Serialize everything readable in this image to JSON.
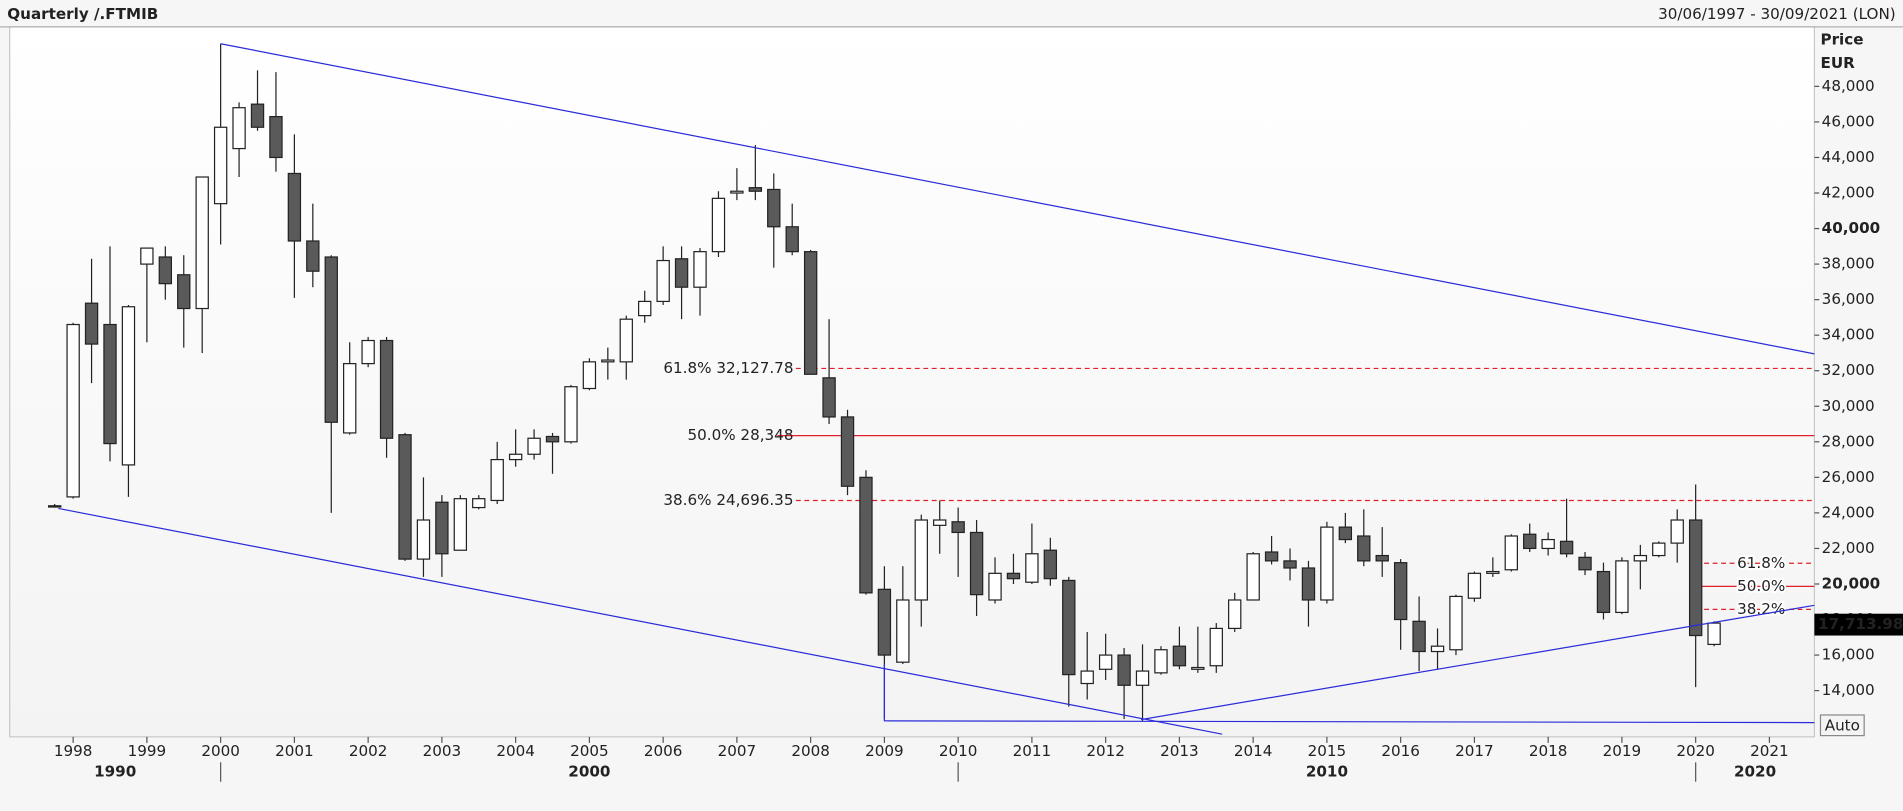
{
  "chart_data": {
    "type": "candlestick",
    "title": "Quarterly /.FTMIB",
    "subtitle": "30/06/1997 - 30/09/2021 (LON)",
    "y_label": "Price",
    "y_unit": "EUR",
    "up_color": "#ffffff",
    "down_color": "#5a5a5a",
    "x": [
      1997.75,
      1998,
      1998.25,
      1998.5,
      1998.75,
      1999,
      1999.25,
      1999.5,
      1999.75,
      2000,
      2000.25,
      2000.5,
      2000.75,
      2001,
      2001.25,
      2001.5,
      2001.75,
      2002,
      2002.25,
      2002.5,
      2002.75,
      2003,
      2003.25,
      2003.5,
      2003.75,
      2004,
      2004.25,
      2004.5,
      2004.75,
      2005,
      2005.25,
      2005.5,
      2005.75,
      2006,
      2006.25,
      2006.5,
      2006.75,
      2007,
      2007.25,
      2007.5,
      2007.75,
      2008,
      2008.25,
      2008.5,
      2008.75,
      2009,
      2009.25,
      2009.5,
      2009.75,
      2010,
      2010.25,
      2010.5,
      2010.75,
      2011,
      2011.25,
      2011.5,
      2011.75,
      2012,
      2012.25,
      2012.5,
      2012.75,
      2013,
      2013.25,
      2013.5,
      2013.75,
      2014,
      2014.25,
      2014.5,
      2014.75,
      2015,
      2015.25,
      2015.5,
      2015.75,
      2016,
      2016.25,
      2016.5,
      2016.75,
      2017,
      2017.25,
      2017.5,
      2017.75,
      2018,
      2018.25,
      2018.5,
      2018.75,
      2019,
      2019.25,
      2019.5,
      2019.75,
      2020,
      2020.25
    ],
    "open": [
      24400,
      24900,
      35800,
      34600,
      26700,
      38000,
      38400,
      37400,
      35500,
      41400,
      44500,
      47000,
      46300,
      43100,
      39300,
      38400,
      28500,
      32400,
      33700,
      28400,
      21400,
      24600,
      21900,
      24300,
      24700,
      27000,
      27300,
      28300,
      28000,
      31000,
      32500,
      32500,
      35100,
      35900,
      38300,
      36700,
      38700,
      42000,
      42300,
      42200,
      40100,
      38700,
      31600,
      29400,
      26000,
      19700,
      15600,
      19100,
      23300,
      23500,
      22900,
      19100,
      20600,
      20100,
      21900,
      20200,
      14400,
      15200,
      16000,
      14300,
      15000,
      16500,
      15200,
      15400,
      17500,
      19100,
      21800,
      21300,
      20900,
      19100,
      23200,
      22700,
      21600,
      21200,
      17900,
      16200,
      16300,
      19200,
      20600,
      20800,
      22800,
      22000,
      22400,
      21500,
      20700,
      18400,
      21300,
      21600,
      22300,
      23600,
      16600
    ],
    "high": [
      24500,
      34700,
      38300,
      39000,
      35700,
      38900,
      39000,
      38500,
      42900,
      50400,
      47100,
      48900,
      48800,
      45300,
      41400,
      38500,
      33600,
      33900,
      33900,
      28500,
      26000,
      25000,
      25000,
      25000,
      28000,
      28700,
      28700,
      28500,
      31200,
      32700,
      33300,
      35100,
      36500,
      39000,
      39000,
      38900,
      42100,
      43400,
      44700,
      43100,
      41400,
      38800,
      34900,
      29800,
      26400,
      21000,
      21000,
      23900,
      24700,
      24300,
      23600,
      21500,
      21700,
      23400,
      22600,
      20400,
      17300,
      17200,
      16400,
      16600,
      16500,
      17600,
      17600,
      17800,
      19500,
      21800,
      22700,
      22000,
      21300,
      23500,
      24000,
      24200,
      23200,
      21400,
      19300,
      17500,
      19400,
      20700,
      21500,
      22800,
      23400,
      22900,
      24800,
      21800,
      21200,
      21500,
      22200,
      22400,
      24200,
      25600,
      17900
    ],
    "low": [
      24300,
      24800,
      31300,
      26900,
      24900,
      33600,
      36000,
      33300,
      33000,
      39100,
      42900,
      45500,
      43200,
      36100,
      36700,
      24000,
      28400,
      32200,
      27100,
      21300,
      20400,
      20400,
      21900,
      24200,
      24500,
      26600,
      27000,
      26200,
      27900,
      30900,
      31500,
      31500,
      34700,
      35700,
      34900,
      35100,
      38400,
      41600,
      41600,
      37800,
      38500,
      31800,
      29000,
      25000,
      19400,
      12400,
      15500,
      17600,
      21700,
      20400,
      18200,
      18900,
      20000,
      20000,
      19900,
      13100,
      13500,
      14600,
      12400,
      12300,
      14900,
      15200,
      15000,
      15000,
      17300,
      19100,
      21100,
      20200,
      17600,
      18900,
      22300,
      21000,
      20400,
      16300,
      15100,
      15200,
      16000,
      19000,
      20400,
      20700,
      21800,
      21600,
      21500,
      20500,
      18000,
      18300,
      19700,
      21500,
      21200,
      14200,
      16500
    ],
    "close": [
      24400,
      34600,
      33500,
      27900,
      35600,
      38900,
      36900,
      35500,
      42900,
      45700,
      46800,
      45700,
      44000,
      39300,
      37600,
      29100,
      32400,
      33700,
      28200,
      21400,
      23600,
      21700,
      24800,
      24800,
      27000,
      27300,
      28200,
      28000,
      31100,
      32500,
      32600,
      34900,
      35900,
      38200,
      36700,
      38700,
      41700,
      42100,
      42100,
      40100,
      38700,
      31800,
      29400,
      25500,
      19500,
      16000,
      19100,
      23600,
      23600,
      22900,
      19400,
      20600,
      20300,
      21700,
      20300,
      14900,
      15100,
      16000,
      14300,
      15100,
      16300,
      15400,
      15300,
      17500,
      19100,
      21700,
      21300,
      20900,
      19100,
      23200,
      22500,
      21300,
      21300,
      18000,
      16200,
      16500,
      19300,
      20600,
      20700,
      22700,
      22000,
      22500,
      21700,
      20800,
      18400,
      21300,
      21600,
      22300,
      23600,
      17100,
      17800
    ],
    "xlim": [
      1997.14,
      2021.61
    ],
    "xticks": [
      1998,
      1999,
      2000,
      2001,
      2002,
      2003,
      2004,
      2005,
      2006,
      2007,
      2008,
      2009,
      2010,
      2011,
      2012,
      2013,
      2014,
      2015,
      2016,
      2017,
      2018,
      2019,
      2020,
      2021
    ],
    "decades": [
      "1990",
      "2000",
      "2010",
      "2020"
    ],
    "decade_ticks": [
      2000,
      2010,
      2020
    ],
    "ylim": [
      11400,
      51350
    ],
    "yticks": [
      {
        "value": 14000,
        "label": "14,000"
      },
      {
        "value": 16000,
        "label": "16,000"
      },
      {
        "value": 18000,
        "label": "18,000"
      },
      {
        "value": 20000,
        "label": "20,000"
      },
      {
        "value": 22000,
        "label": "22,000"
      },
      {
        "value": 24000,
        "label": "24,000"
      },
      {
        "value": 26000,
        "label": "26,000"
      },
      {
        "value": 28000,
        "label": "28,000"
      },
      {
        "value": 30000,
        "label": "30,000"
      },
      {
        "value": 32000,
        "label": "32,000"
      },
      {
        "value": 34000,
        "label": "34,000"
      },
      {
        "value": 36000,
        "label": "36,000"
      },
      {
        "value": 38000,
        "label": "38,000"
      },
      {
        "value": 40000,
        "label": "40,000"
      },
      {
        "value": 42000,
        "label": "42,000"
      },
      {
        "value": 44000,
        "label": "44,000"
      },
      {
        "value": 46000,
        "label": "46,000"
      },
      {
        "value": 48000,
        "label": "48,000"
      }
    ],
    "bold_every": 20000,
    "trend_color": "#2b2bd9",
    "trendlines": [
      {
        "x": [
          2000.0,
          2021.61
        ],
        "y": [
          50400,
          32950
        ]
      },
      {
        "x": [
          1997.8,
          2013.58
        ],
        "y": [
          24250,
          11550
        ]
      },
      {
        "x": [
          2012.48,
          2021.61
        ],
        "y": [
          12370,
          18800
        ]
      },
      {
        "x": [
          2009.0,
          2009.0,
          2021.61
        ],
        "y": [
          15500,
          12300,
          12200
        ]
      }
    ],
    "fib_color": "#e0202a",
    "fib_levels": [
      {
        "value": 32127.78,
        "label": "61.8% 32,127.78",
        "from": 2007.8,
        "dashed": true
      },
      {
        "value": 28348,
        "label": "50.0% 28,348",
        "from": 2007.55,
        "dashed": false
      },
      {
        "value": 24696.35,
        "label": "38.6% 24,696.35",
        "from": 2007.8,
        "dashed": true
      }
    ],
    "fib_right": [
      {
        "price": 21166,
        "text": "61.8%",
        "from": 2020.0,
        "dashed": true
      },
      {
        "price": 19868,
        "text": "50.0%",
        "from": 2020.0,
        "dashed": false
      },
      {
        "price": 18570,
        "text": "38.2%",
        "from": 2020.0,
        "dashed": true
      }
    ],
    "last_price": {
      "value": 17713.98,
      "label": "17,713.98"
    },
    "button": "Auto"
  }
}
